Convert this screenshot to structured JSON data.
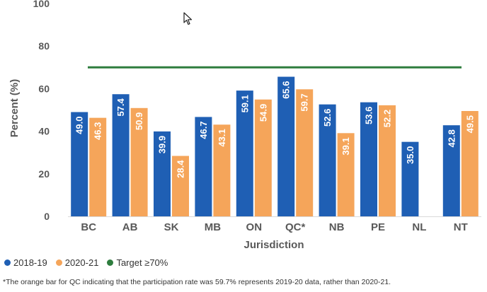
{
  "chart_data": {
    "type": "bar",
    "categories": [
      "BC",
      "AB",
      "SK",
      "MB",
      "ON",
      "QC*",
      "NB",
      "PE",
      "NL",
      "NT"
    ],
    "series": [
      {
        "name": "2018-19",
        "color": "#1f5fb4",
        "values": [
          49.0,
          57.4,
          39.9,
          46.7,
          59.1,
          65.6,
          52.6,
          53.6,
          35.0,
          42.8
        ],
        "labels": [
          "49.0",
          "57.4",
          "39.9",
          "46.7",
          "59.1",
          "65.6",
          "52.6",
          "53.6",
          "35.0",
          "42.8"
        ]
      },
      {
        "name": "2020-21",
        "color": "#f5a55a",
        "values": [
          46.3,
          50.9,
          28.4,
          43.1,
          54.9,
          59.7,
          39.1,
          52.2,
          null,
          49.5
        ],
        "labels": [
          "46.3",
          "50.9",
          "28.4",
          "43.1",
          "54.9",
          "59.7",
          "39.1",
          "52.2",
          "",
          "49.5"
        ]
      }
    ],
    "target": {
      "name": "Target ≥70%",
      "value": 70,
      "color": "#2e7d3e"
    },
    "xlabel": "Jurisdiction",
    "ylabel": "Percent (%)",
    "ylim": [
      0,
      100
    ],
    "yticks": [
      0,
      20,
      40,
      60,
      80,
      100
    ],
    "ytick_labels": [
      "0",
      "20",
      "40",
      "60",
      "80",
      "100"
    ],
    "grid": false,
    "legend": "bottom-left"
  },
  "legend": [
    {
      "label": "2018-19",
      "color": "#1f5fb4"
    },
    {
      "label": "2020-21",
      "color": "#f5a55a"
    },
    {
      "label": "Target ≥70%",
      "color": "#2e7d3e"
    }
  ],
  "footnote": "*The orange bar for QC indicating that the participation rate was 59.7% represents 2019-20 data, rather than 2020-21."
}
